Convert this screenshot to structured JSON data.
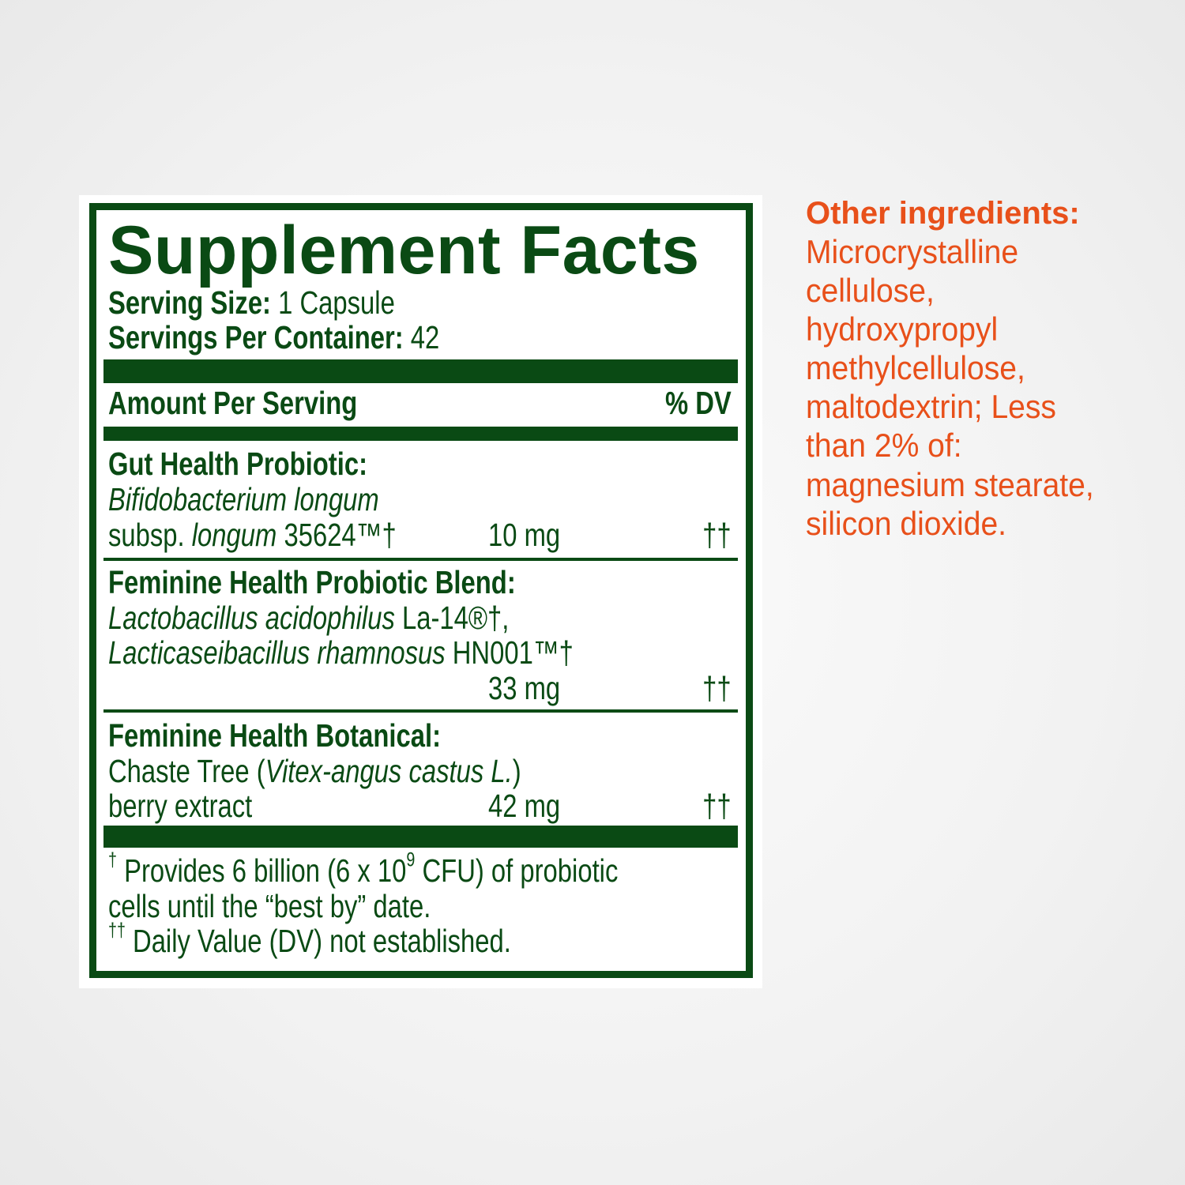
{
  "label": {
    "title": "Supplement Facts",
    "serving_size_label": "Serving Size:",
    "serving_size_value": "1 Capsule",
    "servings_per_container_label": "Servings Per Container:",
    "servings_per_container_value": "42",
    "amount_per_serving": "Amount Per Serving",
    "dv_header": "% DV",
    "ingredients": [
      {
        "heading": "Gut Health Probiotic:",
        "line1_italic": "Bifidobacterium longum",
        "line2_prefix": "subsp. ",
        "line2_italic": "longum",
        "line2_suffix": " 35624™†",
        "amount": "10 mg",
        "dv": "††"
      },
      {
        "heading": "Feminine Health Probiotic Blend:",
        "line1_italic": "Lactobacillus acidophilus",
        "line1_suffix": " La-14®†,",
        "line2_italic": "Lacticaseibacillus rhamnosus",
        "line2_suffix": " HN001™†",
        "amount": "33 mg",
        "dv": "††"
      },
      {
        "heading": "Feminine Health Botanical:",
        "line1_prefix": "Chaste Tree (",
        "line1_italic": "Vitex-angus castus L.",
        "line1_suffix": ")",
        "line2": "berry extract",
        "amount": "42 mg",
        "dv": "††"
      }
    ],
    "footnote1_mark": "†",
    "footnote1_a": " Provides 6 billion (6 x 10",
    "footnote1_exp": "9",
    "footnote1_b": " CFU) of probiotic",
    "footnote1_line2": "cells until the “best by” date.",
    "footnote2_mark": "††",
    "footnote2": " Daily Value (DV) not established."
  },
  "other_ingredients": {
    "heading": "Other ingredients:",
    "lines": [
      "Microcrystalline",
      "cellulose,",
      "hydroxypropyl",
      "methylcellulose,",
      "maltodextrin; Less",
      "than 2% of:",
      "magnesium stearate,",
      "silicon dioxide."
    ]
  },
  "colors": {
    "label_green": "#0a4a14",
    "accent_orange": "#e8501a"
  }
}
